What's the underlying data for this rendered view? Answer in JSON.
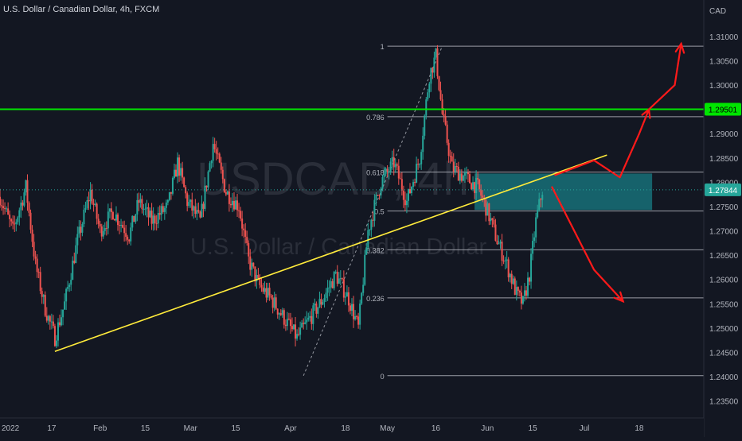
{
  "header": {
    "title": "U.S. Dollar / Canadian Dollar, 4h, FXCM"
  },
  "watermark": {
    "symbol": "USDCAD, 4h",
    "name": "U.S. Dollar / Canadian Dollar"
  },
  "colors": {
    "background": "#131722",
    "up_candle": "#26a69a",
    "down_candle": "#ef5350",
    "green_line": "#00e500",
    "yellow_trend": "#ffeb3b",
    "red_arrow": "#ff1a1a",
    "box_fill": "#1aa0a8",
    "fib_line": "#b2b5be"
  },
  "chart_data": {
    "type": "candlestick",
    "title": "U.S. Dollar / Canadian Dollar, 4h, FXCM",
    "ylabel": "CAD",
    "ylim": [
      1.2315,
      1.3175
    ],
    "y_ticks": [
      "1.31000",
      "1.30500",
      "1.30000",
      "1.29500",
      "1.29000",
      "1.28500",
      "1.28000",
      "1.27500",
      "1.27000",
      "1.26500",
      "1.26000",
      "1.25500",
      "1.25000",
      "1.24500",
      "1.24000",
      "1.23500"
    ],
    "y_tick_values": [
      1.31,
      1.305,
      1.3,
      1.295,
      1.29,
      1.285,
      1.28,
      1.275,
      1.27,
      1.265,
      1.26,
      1.255,
      1.25,
      1.245,
      1.24,
      1.235
    ],
    "x_ticks": [
      {
        "label": "2022",
        "day": 0
      },
      {
        "label": "17",
        "day": 16
      },
      {
        "label": "Feb",
        "day": 31
      },
      {
        "label": "15",
        "day": 45
      },
      {
        "label": "Mar",
        "day": 59
      },
      {
        "label": "15",
        "day": 73
      },
      {
        "label": "Apr",
        "day": 90
      },
      {
        "label": "18",
        "day": 107
      },
      {
        "label": "May",
        "day": 120
      },
      {
        "label": "16",
        "day": 135
      },
      {
        "label": "Jun",
        "day": 151
      },
      {
        "label": "15",
        "day": 165
      },
      {
        "label": "Jul",
        "day": 181
      },
      {
        "label": "18",
        "day": 198
      }
    ],
    "x_axis_start_day": 0,
    "x_axis_end_day": 218,
    "price_path": [
      {
        "day": 0,
        "price": 1.277
      },
      {
        "day": 4,
        "price": 1.27
      },
      {
        "day": 8,
        "price": 1.279
      },
      {
        "day": 11,
        "price": 1.263
      },
      {
        "day": 14,
        "price": 1.254
      },
      {
        "day": 17,
        "price": 1.248
      },
      {
        "day": 20,
        "price": 1.255
      },
      {
        "day": 24,
        "price": 1.268
      },
      {
        "day": 28,
        "price": 1.278
      },
      {
        "day": 31,
        "price": 1.27
      },
      {
        "day": 35,
        "price": 1.274
      },
      {
        "day": 40,
        "price": 1.269
      },
      {
        "day": 43,
        "price": 1.276
      },
      {
        "day": 47,
        "price": 1.272
      },
      {
        "day": 52,
        "price": 1.275
      },
      {
        "day": 55,
        "price": 1.284
      },
      {
        "day": 58,
        "price": 1.276
      },
      {
        "day": 62,
        "price": 1.272
      },
      {
        "day": 66,
        "price": 1.288
      },
      {
        "day": 70,
        "price": 1.278
      },
      {
        "day": 74,
        "price": 1.275
      },
      {
        "day": 77,
        "price": 1.264
      },
      {
        "day": 80,
        "price": 1.259
      },
      {
        "day": 84,
        "price": 1.256
      },
      {
        "day": 88,
        "price": 1.252
      },
      {
        "day": 92,
        "price": 1.248
      },
      {
        "day": 96,
        "price": 1.252
      },
      {
        "day": 100,
        "price": 1.256
      },
      {
        "day": 104,
        "price": 1.261
      },
      {
        "day": 108,
        "price": 1.256
      },
      {
        "day": 111,
        "price": 1.25
      },
      {
        "day": 114,
        "price": 1.27
      },
      {
        "day": 118,
        "price": 1.28
      },
      {
        "day": 122,
        "price": 1.284
      },
      {
        "day": 126,
        "price": 1.276
      },
      {
        "day": 130,
        "price": 1.285
      },
      {
        "day": 133,
        "price": 1.302
      },
      {
        "day": 135,
        "price": 1.306
      },
      {
        "day": 137,
        "price": 1.294
      },
      {
        "day": 140,
        "price": 1.283
      },
      {
        "day": 144,
        "price": 1.281
      },
      {
        "day": 148,
        "price": 1.279
      },
      {
        "day": 151,
        "price": 1.274
      },
      {
        "day": 154,
        "price": 1.268
      },
      {
        "day": 157,
        "price": 1.263
      },
      {
        "day": 160,
        "price": 1.257
      },
      {
        "day": 162,
        "price": 1.255
      },
      {
        "day": 164,
        "price": 1.261
      },
      {
        "day": 166,
        "price": 1.272
      },
      {
        "day": 168,
        "price": 1.2784
      }
    ],
    "horizontal_line": {
      "price": 1.29501,
      "label": "1.29501"
    },
    "last_price": {
      "price": 1.27844,
      "label": "1.27844"
    },
    "fib_retracement": {
      "start_day": 120,
      "end_day": 218,
      "low": 1.2402,
      "high": 1.308,
      "levels": [
        {
          "ratio": 1,
          "label": "1"
        },
        {
          "ratio": 0.786,
          "label": "0.786"
        },
        {
          "ratio": 0.618,
          "label": "0.618"
        },
        {
          "ratio": 0.5,
          "label": "0.5"
        },
        {
          "ratio": 0.382,
          "label": "0.382"
        },
        {
          "ratio": 0.236,
          "label": "0.236"
        },
        {
          "ratio": 0,
          "label": "0"
        }
      ]
    },
    "trend_line": {
      "from": {
        "day": 17,
        "price": 1.2452
      },
      "to": {
        "day": 188,
        "price": 1.2856
      }
    },
    "fib_diagonal": {
      "from": {
        "day": 94,
        "price": 1.2402
      },
      "to": {
        "day": 137,
        "price": 1.308
      }
    },
    "zone_box": {
      "day_from": 147,
      "day_to": 202,
      "price_top": 1.2818,
      "price_bottom": 1.2743
    },
    "arrows": [
      {
        "name": "bullish-path",
        "points": [
          {
            "day": 172,
            "price": 1.2815
          },
          {
            "day": 184,
            "price": 1.2845
          },
          {
            "day": 192,
            "price": 1.281
          },
          {
            "day": 198,
            "price": 1.29
          },
          {
            "day": 201,
            "price": 1.295
          },
          {
            "day": 209,
            "price": 1.3
          },
          {
            "day": 211,
            "price": 1.3085
          }
        ]
      },
      {
        "name": "bearish-path",
        "points": [
          {
            "day": 171,
            "price": 1.279
          },
          {
            "day": 184,
            "price": 1.262
          },
          {
            "day": 193,
            "price": 1.2555
          }
        ]
      }
    ]
  }
}
